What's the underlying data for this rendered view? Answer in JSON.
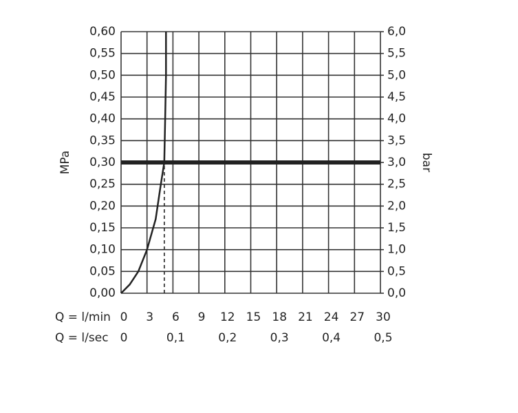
{
  "chart_data": {
    "type": "line",
    "y_label": "MPa",
    "y2_label": "bar",
    "x_label": "Q = l/min",
    "x2_label": "Q = l/sec",
    "series": [
      {
        "color": "#222222",
        "x": [
          0,
          1,
          2,
          3,
          4,
          4.6,
          5,
          5.1,
          5.2,
          5.2
        ],
        "values": [
          0,
          0.02,
          0.05,
          0.1,
          0.17,
          0.25,
          0.3,
          0.4,
          0.5,
          0.6
        ]
      }
    ],
    "hlines": [
      0.3
    ],
    "vlines": [
      5
    ],
    "xlim": [
      0,
      30
    ],
    "xticks": [
      0,
      3,
      6,
      9,
      12,
      15,
      18,
      21,
      24,
      27,
      30
    ],
    "x2lim": [
      0,
      0.5
    ],
    "x2ticks": [
      0,
      {
        "value": 0.1,
        "label": "0,1"
      },
      {
        "value": 0.2,
        "label": "0,2"
      },
      {
        "value": 0.3,
        "label": "0,3"
      },
      {
        "value": 0.4,
        "label": "0,4"
      },
      {
        "value": 0.5,
        "label": "0,5"
      }
    ],
    "ylim": [
      0,
      0.6
    ],
    "yticks": [
      {
        "value": 0,
        "label": "0,00"
      },
      {
        "value": 0.05,
        "label": "0,05"
      },
      {
        "value": 0.1,
        "label": "0,10"
      },
      {
        "value": 0.15,
        "label": "0,15"
      },
      {
        "value": 0.2,
        "label": "0,20"
      },
      {
        "value": 0.25,
        "label": "0,25"
      },
      {
        "value": 0.3,
        "label": "0,30"
      },
      {
        "value": 0.35,
        "label": "0,35"
      },
      {
        "value": 0.4,
        "label": "0,40"
      },
      {
        "value": 0.45,
        "label": "0,45"
      },
      {
        "value": 0.5,
        "label": "0,50"
      },
      {
        "value": 0.55,
        "label": "0,55"
      },
      {
        "value": 0.6,
        "label": "0,60"
      }
    ],
    "y2lim": [
      0,
      6
    ],
    "y2ticks": [
      {
        "value": 0,
        "label": "0,0"
      },
      {
        "value": 0.5,
        "label": "0,5"
      },
      {
        "value": 1,
        "label": "1,0"
      },
      {
        "value": 1.5,
        "label": "1,5"
      },
      {
        "value": 2,
        "label": "2,0"
      },
      {
        "value": 2.5,
        "label": "2,5"
      },
      {
        "value": 3,
        "label": "3,0"
      },
      {
        "value": 3.5,
        "label": "3,5"
      },
      {
        "value": 4,
        "label": "4,0"
      },
      {
        "value": 4.5,
        "label": "4,5"
      },
      {
        "value": 5,
        "label": "5,0"
      },
      {
        "value": 5.5,
        "label": "5,5"
      },
      {
        "value": 6,
        "label": "6,0"
      }
    ],
    "grid": true
  }
}
